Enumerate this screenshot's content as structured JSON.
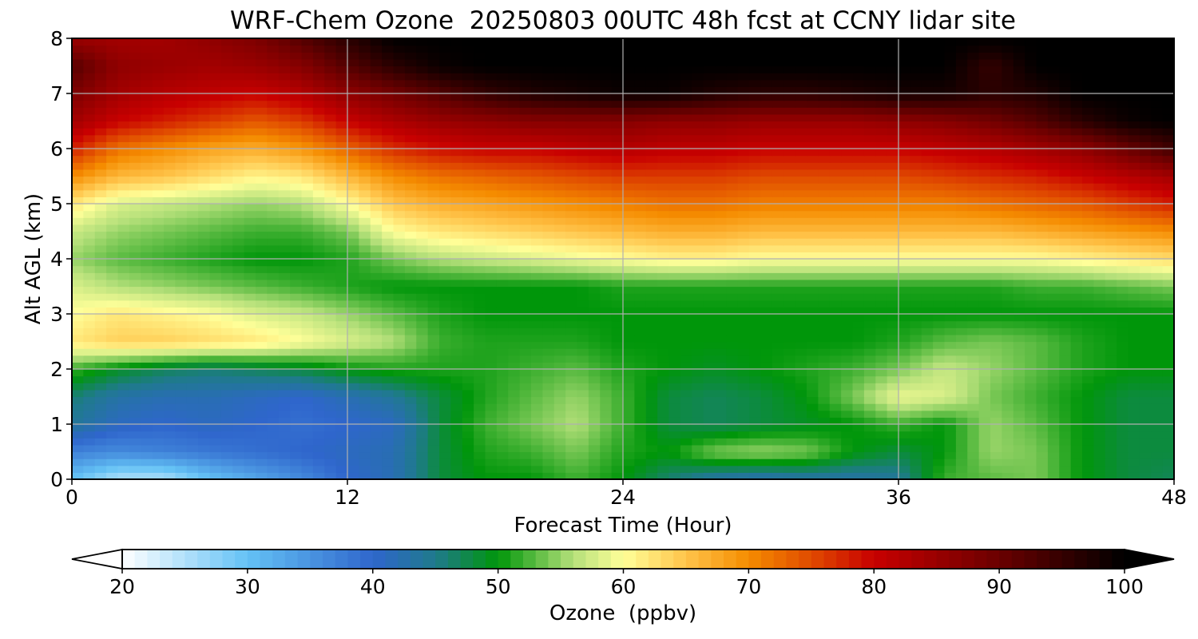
{
  "chart_data": {
    "type": "heatmap",
    "title": "WRF-Chem Ozone  20250803 00UTC 48h fcst at CCNY lidar site",
    "xlabel": "Forecast Time (Hour)",
    "ylabel": "Alt AGL (km)",
    "xlim": [
      0,
      48
    ],
    "ylim": [
      0,
      8
    ],
    "x_ticks": [
      "0",
      "12",
      "24",
      "36",
      "48"
    ],
    "y_ticks": [
      "0",
      "1",
      "2",
      "3",
      "4",
      "5",
      "6",
      "7",
      "8"
    ],
    "grid": true,
    "colorbar": {
      "label": "Ozone  (ppbv)",
      "range": [
        20,
        100
      ],
      "ticks": [
        "20",
        "30",
        "40",
        "50",
        "60",
        "70",
        "80",
        "90",
        "100"
      ],
      "extend": "both",
      "stops": [
        {
          "value": 20,
          "color": "#ffffff"
        },
        {
          "value": 30,
          "color": "#64c2f5"
        },
        {
          "value": 40,
          "color": "#2f66cc"
        },
        {
          "value": 45,
          "color": "#1f7a8c"
        },
        {
          "value": 50,
          "color": "#00960a"
        },
        {
          "value": 56,
          "color": "#b5e07a"
        },
        {
          "value": 60,
          "color": "#ffff99"
        },
        {
          "value": 65,
          "color": "#ffc44a"
        },
        {
          "value": 70,
          "color": "#f58c00"
        },
        {
          "value": 75,
          "color": "#e04a00"
        },
        {
          "value": 80,
          "color": "#c80000"
        },
        {
          "value": 90,
          "color": "#6a0000"
        },
        {
          "value": 100,
          "color": "#000000"
        }
      ]
    },
    "hours": [
      0,
      2,
      4,
      6,
      8,
      10,
      12,
      14,
      16,
      18,
      20,
      22,
      24,
      26,
      28,
      30,
      32,
      34,
      36,
      38,
      40,
      42,
      44,
      46,
      48
    ],
    "altitudes_km": [
      0,
      0.5,
      1,
      1.5,
      2,
      2.5,
      3,
      3.5,
      4,
      4.5,
      5,
      5.5,
      6,
      6.5,
      7,
      7.5,
      8
    ],
    "ozone_ppbv": [
      [
        30,
        25,
        25,
        30,
        33,
        36,
        40,
        42,
        48,
        50,
        50,
        52,
        50,
        46,
        43,
        42,
        43,
        43,
        44,
        52,
        53,
        54,
        50,
        48,
        47
      ],
      [
        37,
        36,
        37,
        38,
        39,
        40,
        41,
        42,
        48,
        51,
        52,
        54,
        51,
        50,
        54,
        55,
        54,
        50,
        48,
        50,
        55,
        54,
        50,
        48,
        48
      ],
      [
        44,
        41,
        40,
        41,
        40,
        39,
        40,
        41,
        48,
        52,
        54,
        56,
        52,
        48,
        47,
        48,
        49,
        50,
        52,
        50,
        55,
        53,
        50,
        48,
        48
      ],
      [
        46,
        43,
        42,
        42,
        41,
        40,
        42,
        44,
        48,
        51,
        53,
        55,
        52,
        48,
        47,
        48,
        50,
        54,
        59,
        58,
        54,
        52,
        50,
        48,
        48
      ],
      [
        52,
        49,
        47,
        46,
        47,
        48,
        50,
        51,
        51,
        51,
        52,
        53,
        51,
        50,
        49,
        50,
        51,
        52,
        54,
        57,
        55,
        53,
        51,
        50,
        50
      ],
      [
        62,
        64,
        64,
        63,
        62,
        60,
        58,
        56,
        52,
        51,
        51,
        51,
        50,
        50,
        50,
        50,
        50,
        50,
        51,
        53,
        54,
        53,
        51,
        50,
        50
      ],
      [
        60,
        62,
        61,
        60,
        58,
        57,
        55,
        53,
        51,
        50,
        50,
        50,
        50,
        50,
        50,
        50,
        50,
        50,
        50,
        50,
        50,
        50,
        50,
        50,
        50
      ],
      [
        58,
        56,
        55,
        54,
        53,
        52,
        51,
        50,
        50,
        50,
        50,
        50,
        51,
        51,
        51,
        51,
        51,
        51,
        51,
        51,
        51,
        52,
        52,
        53,
        54
      ],
      [
        55,
        53,
        52,
        51,
        50,
        50,
        51,
        54,
        56,
        57,
        58,
        59,
        60,
        61,
        61,
        60,
        60,
        60,
        60,
        60,
        60,
        60,
        61,
        62,
        63
      ],
      [
        57,
        55,
        54,
        53,
        52,
        52,
        54,
        60,
        62,
        63,
        64,
        65,
        66,
        67,
        67,
        66,
        66,
        66,
        66,
        66,
        66,
        67,
        68,
        69,
        70
      ],
      [
        62,
        58,
        57,
        56,
        55,
        56,
        60,
        65,
        67,
        68,
        69,
        70,
        71,
        72,
        72,
        71,
        71,
        71,
        71,
        71,
        72,
        73,
        74,
        76,
        78
      ],
      [
        70,
        66,
        65,
        63,
        61,
        62,
        66,
        70,
        72,
        73,
        74,
        75,
        76,
        76,
        76,
        75,
        75,
        75,
        75,
        76,
        77,
        78,
        80,
        82,
        84
      ],
      [
        78,
        72,
        70,
        68,
        67,
        69,
        73,
        77,
        79,
        80,
        80,
        81,
        82,
        81,
        81,
        80,
        80,
        80,
        80,
        81,
        82,
        84,
        86,
        90,
        94
      ],
      [
        84,
        80,
        78,
        76,
        74,
        76,
        80,
        83,
        85,
        86,
        87,
        87,
        87,
        86,
        86,
        85,
        85,
        85,
        86,
        87,
        89,
        92,
        96,
        99,
        100
      ],
      [
        88,
        84,
        82,
        81,
        80,
        82,
        86,
        89,
        92,
        95,
        97,
        98,
        99,
        99,
        97,
        96,
        96,
        97,
        98,
        98,
        96,
        97,
        100,
        100,
        100
      ],
      [
        92,
        86,
        85,
        84,
        85,
        87,
        92,
        96,
        99,
        100,
        100,
        100,
        100,
        100,
        100,
        100,
        100,
        100,
        100,
        100,
        95,
        100,
        100,
        100,
        100
      ],
      [
        85,
        84,
        84,
        86,
        88,
        92,
        96,
        100,
        100,
        100,
        100,
        100,
        100,
        100,
        100,
        100,
        100,
        100,
        100,
        100,
        100,
        100,
        100,
        100,
        100
      ]
    ]
  }
}
